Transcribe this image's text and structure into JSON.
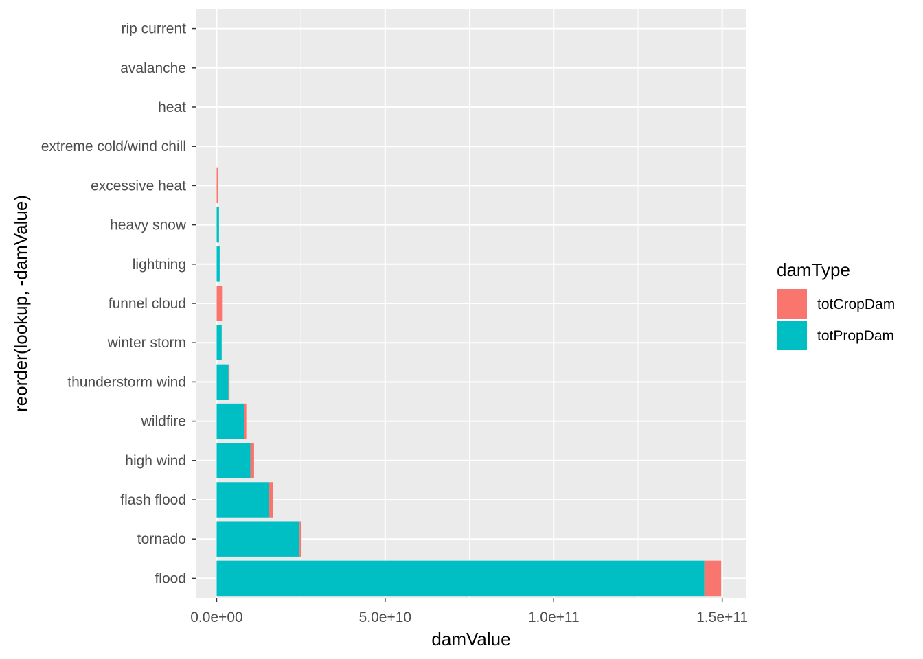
{
  "chart_data": {
    "type": "bar",
    "orientation": "horizontal",
    "stacked": true,
    "xlabel": "damValue",
    "ylabel": "reorder(lookup, -damValue)",
    "xlim": [
      -6000000000,
      157000000000
    ],
    "x_ticks": [
      0,
      50000000000,
      100000000000,
      150000000000
    ],
    "x_tick_labels": [
      "0.0e+00",
      "5.0e+10",
      "1.0e+11",
      "1.5e+11"
    ],
    "categories": [
      "flood",
      "tornado",
      "flash flood",
      "high wind",
      "wildfire",
      "thunderstorm wind",
      "winter storm",
      "funnel cloud",
      "lightning",
      "heavy snow",
      "excessive heat",
      "extreme cold/wind chill",
      "heat",
      "avalanche",
      "rip current"
    ],
    "series": [
      {
        "name": "totPropDam",
        "color": "#00BFC4",
        "values": [
          144700000000,
          24600000000,
          15500000000,
          10000000000,
          8100000000,
          3500000000,
          1500000000,
          0,
          900000000,
          700000000,
          0,
          0,
          0,
          0,
          0
        ]
      },
      {
        "name": "totCropDam",
        "color": "#F8766D",
        "values": [
          5000000000,
          400000000,
          1300000000,
          1100000000,
          700000000,
          300000000,
          0,
          1600000000,
          0,
          0,
          500000000,
          0,
          0,
          0,
          0
        ]
      }
    ],
    "legend": {
      "title": "damType",
      "position": "right",
      "entries": [
        "totCropDam",
        "totPropDam"
      ]
    },
    "grid": true,
    "panel_background": "#EBEBEB"
  }
}
